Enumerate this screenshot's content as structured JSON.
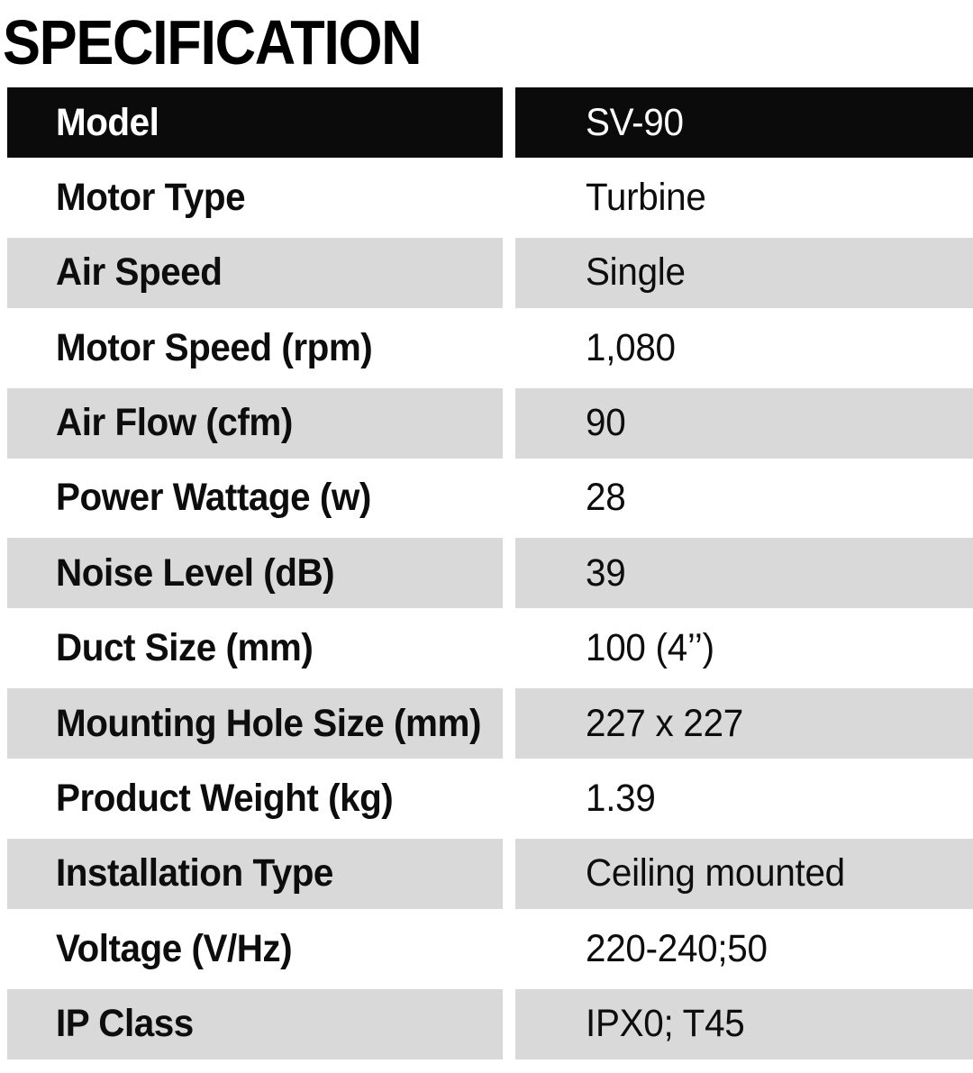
{
  "page": {
    "title": "SPECIFICATION"
  },
  "colors": {
    "header_bg": "#0b0b0b",
    "header_text": "#ffffff",
    "row_alt_bg": "#d9d9d9",
    "row_bg": "#ffffff",
    "text": "#0d0d0d"
  },
  "table": {
    "header": {
      "label": "Model",
      "value": "SV-90"
    },
    "rows": [
      {
        "label": "Motor Type",
        "value": "Turbine"
      },
      {
        "label": "Air Speed",
        "value": "Single"
      },
      {
        "label": "Motor Speed (rpm)",
        "value": "1,080"
      },
      {
        "label": "Air Flow (cfm)",
        "value": "90"
      },
      {
        "label": "Power Wattage (w)",
        "value": "28"
      },
      {
        "label": "Noise Level (dB)",
        "value": "39"
      },
      {
        "label": "Duct Size (mm)",
        "value": "100 (4’’)"
      },
      {
        "label": "Mounting Hole Size (mm)",
        "value": "227 x 227"
      },
      {
        "label": "Product Weight (kg)",
        "value": "1.39"
      },
      {
        "label": "Installation Type",
        "value": "Ceiling mounted"
      },
      {
        "label": "Voltage (V/Hz)",
        "value": "220-240;50"
      },
      {
        "label": "IP Class",
        "value": "IPX0; T45"
      }
    ]
  }
}
